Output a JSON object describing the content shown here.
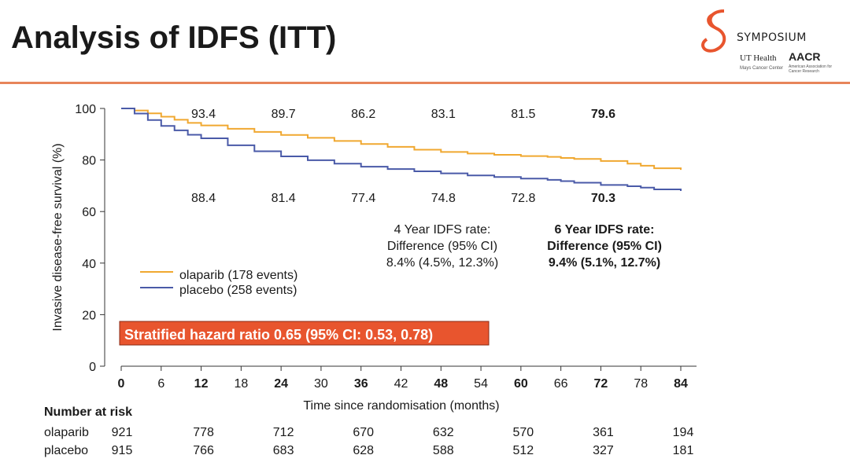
{
  "slide": {
    "title": "Analysis of IDFS (ITT)"
  },
  "logo": {
    "symposium": "SYMPOSIUM",
    "ut_health": "UT Health",
    "ut_sub": "Mays Cancer Center",
    "aacr": "AACR",
    "aacr_sub": "American Association for Cancer Research"
  },
  "colors": {
    "olaparib": "#f0a830",
    "placebo": "#4a5aa8",
    "hr_box": "#e8552e",
    "accent": "#e7855a"
  },
  "chart_data": {
    "type": "line",
    "ylabel": "Invasive disease-free survival (%)",
    "xlabel": "Time since randomisation (months)",
    "xlim": [
      0,
      84
    ],
    "ylim": [
      0,
      100
    ],
    "xticks": [
      0,
      6,
      12,
      18,
      24,
      30,
      36,
      42,
      48,
      54,
      60,
      66,
      72,
      78,
      84
    ],
    "xtick_labels": [
      "0",
      "6",
      "12",
      "18",
      "24",
      "30",
      "36",
      "42",
      "48",
      "54",
      "60",
      "66",
      "72",
      "78",
      "84"
    ],
    "bold_xticks": [
      "0",
      "12",
      "24",
      "36",
      "48",
      "60",
      "72",
      "84"
    ],
    "yticks": [
      0,
      20,
      40,
      60,
      80,
      100
    ],
    "ytick_labels": [
      "0",
      "20",
      "40",
      "60",
      "80",
      "100"
    ],
    "series": [
      {
        "name": "olaparib (178 events)",
        "x": [
          0,
          2,
          4,
          6,
          8,
          10,
          12,
          16,
          20,
          24,
          28,
          32,
          36,
          40,
          44,
          48,
          52,
          56,
          60,
          64,
          66,
          68,
          72,
          76,
          78,
          80,
          84
        ],
        "values": [
          100,
          99.2,
          98.1,
          96.8,
          95.6,
          94.4,
          93.4,
          92.1,
          90.9,
          89.7,
          88.6,
          87.4,
          86.2,
          85.1,
          84.0,
          83.1,
          82.5,
          82.0,
          81.5,
          81.2,
          80.8,
          80.4,
          79.6,
          78.6,
          77.8,
          76.8,
          76.2
        ]
      },
      {
        "name": "placebo (258 events)",
        "x": [
          0,
          2,
          4,
          6,
          8,
          10,
          12,
          16,
          20,
          24,
          28,
          32,
          36,
          40,
          44,
          48,
          52,
          56,
          60,
          64,
          66,
          68,
          72,
          76,
          78,
          80,
          84
        ],
        "values": [
          100,
          98.0,
          95.5,
          93.2,
          91.5,
          89.8,
          88.4,
          85.7,
          83.4,
          81.4,
          79.9,
          78.6,
          77.4,
          76.5,
          75.6,
          74.8,
          74.0,
          73.4,
          72.8,
          72.3,
          71.8,
          71.2,
          70.3,
          69.8,
          69.3,
          68.6,
          68.0
        ]
      }
    ],
    "point_labels": {
      "olaparib": [
        {
          "x": 12,
          "label": "93.4",
          "bold": false
        },
        {
          "x": 24,
          "label": "89.7",
          "bold": false
        },
        {
          "x": 36,
          "label": "86.2",
          "bold": false
        },
        {
          "x": 48,
          "label": "83.1",
          "bold": false
        },
        {
          "x": 60,
          "label": "81.5",
          "bold": false
        },
        {
          "x": 72,
          "label": "79.6",
          "bold": true
        }
      ],
      "placebo": [
        {
          "x": 12,
          "label": "88.4",
          "bold": false
        },
        {
          "x": 24,
          "label": "81.4",
          "bold": false
        },
        {
          "x": 36,
          "label": "77.4",
          "bold": false
        },
        {
          "x": 48,
          "label": "74.8",
          "bold": false
        },
        {
          "x": 60,
          "label": "72.8",
          "bold": false
        },
        {
          "x": 72,
          "label": "70.3",
          "bold": true
        }
      ]
    },
    "annotations": {
      "four_year": [
        "4 Year IDFS rate:",
        "Difference (95% CI)",
        "8.4% (4.5%, 12.3%)"
      ],
      "six_year": [
        "6 Year IDFS rate:",
        "Difference (95% CI)",
        "9.4% (5.1%, 12.7%)"
      ],
      "hazard_ratio": "Stratified hazard ratio 0.65 (95% CI: 0.53, 0.78)"
    },
    "legend_position": "left-middle",
    "risk_table": {
      "title": "Number at risk",
      "x": [
        0,
        12,
        24,
        36,
        48,
        60,
        72,
        84
      ],
      "rows": [
        {
          "label": "olaparib",
          "values": [
            "921",
            "778",
            "712",
            "670",
            "632",
            "570",
            "361",
            "194"
          ]
        },
        {
          "label": "placebo",
          "values": [
            "915",
            "766",
            "683",
            "628",
            "588",
            "512",
            "327",
            "181"
          ]
        }
      ]
    }
  }
}
